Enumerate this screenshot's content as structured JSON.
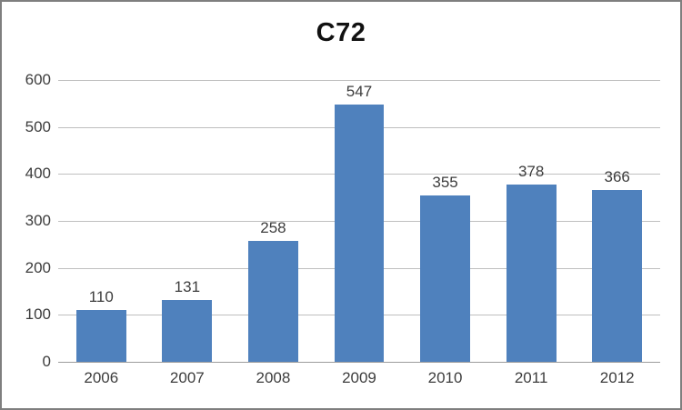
{
  "chart_data": {
    "type": "bar",
    "title": "C72",
    "categories": [
      "2006",
      "2007",
      "2008",
      "2009",
      "2010",
      "2011",
      "2012"
    ],
    "values": [
      110,
      131,
      258,
      547,
      355,
      378,
      366
    ],
    "data_labels": [
      "110",
      "131",
      "258",
      "547",
      "355",
      "378",
      "366"
    ],
    "xlabel": "",
    "ylabel": "",
    "ylim": [
      0,
      600
    ],
    "y_ticks": [
      0,
      100,
      200,
      300,
      400,
      500,
      600
    ],
    "grid": true,
    "legend": "none",
    "colors": {
      "bar": "#4f81bd",
      "gridline": "#bfbfbf",
      "axis_line": "#9c9c9c",
      "tick_text": "#3d3d3d",
      "title_text": "#111111",
      "frame_border": "#7f7f7f",
      "background": "#ffffff"
    }
  }
}
